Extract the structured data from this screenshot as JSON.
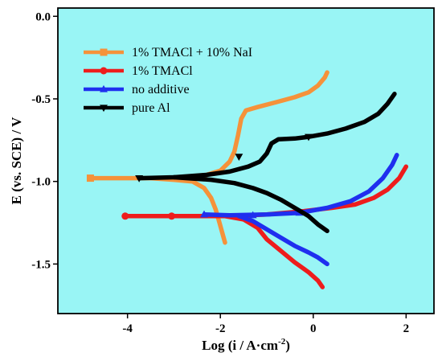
{
  "chart_data": {
    "type": "line",
    "xlabel": "Log (i / A·cm",
    "xlabel_sup": "-2",
    "xlabel_end": ")",
    "ylabel": "E (vs. SCE) / V",
    "xlim": [
      -5.5,
      2.6
    ],
    "ylim": [
      -1.8,
      0.05
    ],
    "x_ticks": [
      -4,
      -2,
      0,
      2
    ],
    "x_tick_labels": [
      "-4",
      "-2",
      "0",
      "2"
    ],
    "y_ticks": [
      0.0,
      -0.5,
      -1.0,
      -1.5
    ],
    "y_tick_labels": [
      "0.0",
      "-0.5",
      "-1.0",
      "-1.5"
    ],
    "plot_background": "#99f5f5",
    "grid": false,
    "legend_position": "top-left",
    "series": [
      {
        "name": "1% TMACl + 10% NaI",
        "color": "#f5923a",
        "marker": "square",
        "marker_at": [
          [
            -4.8,
            -0.98
          ]
        ],
        "segments": [
          [
            [
              -4.8,
              -0.98
            ],
            [
              -3.5,
              -0.98
            ],
            [
              -2.8,
              -0.975
            ],
            [
              -2.3,
              -0.96
            ],
            [
              -2.0,
              -0.935
            ],
            [
              -1.8,
              -0.88
            ],
            [
              -1.7,
              -0.82
            ],
            [
              -1.62,
              -0.72
            ],
            [
              -1.55,
              -0.62
            ],
            [
              -1.45,
              -0.57
            ],
            [
              -1.2,
              -0.55
            ],
            [
              -0.8,
              -0.52
            ],
            [
              -0.4,
              -0.49
            ],
            [
              -0.1,
              -0.46
            ],
            [
              0.1,
              -0.42
            ],
            [
              0.25,
              -0.37
            ],
            [
              0.3,
              -0.34
            ]
          ],
          [
            [
              -3.5,
              -0.98
            ],
            [
              -3.0,
              -0.99
            ],
            [
              -2.6,
              -1.0
            ],
            [
              -2.35,
              -1.04
            ],
            [
              -2.2,
              -1.1
            ],
            [
              -2.1,
              -1.17
            ],
            [
              -2.02,
              -1.25
            ],
            [
              -1.95,
              -1.32
            ],
            [
              -1.9,
              -1.37
            ]
          ]
        ]
      },
      {
        "name": "1% TMACl",
        "color": "#ee1c1c",
        "marker": "circle",
        "marker_at": [
          [
            -4.05,
            -1.21
          ],
          [
            -3.05,
            -1.21
          ]
        ],
        "segments": [
          [
            [
              -4.05,
              -1.21
            ],
            [
              -2.6,
              -1.21
            ],
            [
              -1.8,
              -1.21
            ],
            [
              -1.0,
              -1.2
            ],
            [
              -0.2,
              -1.18
            ],
            [
              0.4,
              -1.16
            ],
            [
              0.9,
              -1.14
            ],
            [
              1.3,
              -1.1
            ],
            [
              1.6,
              -1.05
            ],
            [
              1.85,
              -0.98
            ],
            [
              2.0,
              -0.91
            ]
          ],
          [
            [
              -1.9,
              -1.21
            ],
            [
              -1.5,
              -1.23
            ],
            [
              -1.2,
              -1.28
            ],
            [
              -1.0,
              -1.35
            ],
            [
              -0.7,
              -1.42
            ],
            [
              -0.4,
              -1.49
            ],
            [
              -0.1,
              -1.55
            ],
            [
              0.1,
              -1.6
            ],
            [
              0.2,
              -1.64
            ]
          ]
        ]
      },
      {
        "name": "no additive",
        "color": "#1f2fef",
        "marker": "triangle",
        "marker_at": [
          [
            -2.35,
            -1.2
          ],
          [
            -1.3,
            -1.205
          ],
          [
            -0.3,
            -1.19
          ]
        ],
        "segments": [
          [
            [
              -2.35,
              -1.2
            ],
            [
              -1.8,
              -1.205
            ],
            [
              -1.0,
              -1.2
            ],
            [
              -0.3,
              -1.19
            ],
            [
              0.3,
              -1.16
            ],
            [
              0.8,
              -1.12
            ],
            [
              1.2,
              -1.06
            ],
            [
              1.5,
              -0.98
            ],
            [
              1.7,
              -0.9
            ],
            [
              1.8,
              -0.84
            ]
          ],
          [
            [
              -1.6,
              -1.21
            ],
            [
              -1.3,
              -1.24
            ],
            [
              -1.0,
              -1.29
            ],
            [
              -0.7,
              -1.34
            ],
            [
              -0.4,
              -1.39
            ],
            [
              -0.1,
              -1.43
            ],
            [
              0.1,
              -1.46
            ],
            [
              0.3,
              -1.5
            ]
          ]
        ]
      },
      {
        "name": "pure Al",
        "color": "#000000",
        "marker": "triangle-down",
        "marker_at": [
          [
            -3.75,
            -0.98
          ],
          [
            -1.6,
            -0.85
          ],
          [
            -0.1,
            -0.73
          ]
        ],
        "segments": [
          [
            [
              -3.75,
              -0.98
            ],
            [
              -3.0,
              -0.975
            ],
            [
              -2.3,
              -0.96
            ],
            [
              -1.8,
              -0.94
            ],
            [
              -1.4,
              -0.91
            ],
            [
              -1.15,
              -0.88
            ],
            [
              -1.0,
              -0.83
            ],
            [
              -0.9,
              -0.77
            ],
            [
              -0.75,
              -0.745
            ],
            [
              -0.4,
              -0.74
            ],
            [
              -0.1,
              -0.73
            ],
            [
              0.3,
              -0.71
            ],
            [
              0.7,
              -0.68
            ],
            [
              1.1,
              -0.64
            ],
            [
              1.4,
              -0.59
            ],
            [
              1.6,
              -0.53
            ],
            [
              1.75,
              -0.47
            ]
          ],
          [
            [
              -3.0,
              -0.975
            ],
            [
              -2.2,
              -0.99
            ],
            [
              -1.7,
              -1.01
            ],
            [
              -1.3,
              -1.04
            ],
            [
              -1.0,
              -1.07
            ],
            [
              -0.7,
              -1.11
            ],
            [
              -0.4,
              -1.16
            ],
            [
              -0.1,
              -1.21
            ],
            [
              0.1,
              -1.26
            ],
            [
              0.3,
              -1.3
            ]
          ]
        ]
      }
    ]
  }
}
